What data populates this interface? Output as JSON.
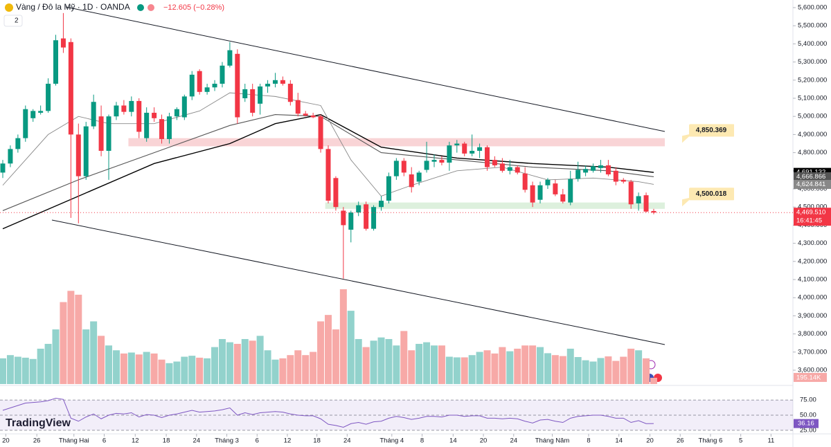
{
  "chart_data": {
    "type": "candlestick",
    "header": {
      "symbol": "Vàng / Đô la Mỹ · 1D · OANDA",
      "change": "−12.605 (−0.28%)",
      "badge": "2"
    },
    "logo": "TradingView",
    "up_color": "#089981",
    "down_color": "#f23645",
    "candles": {
      "open": [
        4690,
        4740,
        4820,
        4880,
        4990,
        5020,
        5030,
        5180,
        5430,
        5410,
        4900,
        4670,
        4945,
        5000,
        4810,
        5000,
        5060,
        5025,
        5085,
        4880,
        5020,
        4985,
        4875,
        5000,
        4995,
        5110,
        5250,
        5135,
        5160,
        5180,
        5280,
        5345,
        5100,
        5150,
        5070,
        5165,
        5180,
        5200,
        5180,
        5090,
        5015,
        5005,
        5000,
        4820,
        4660,
        4480,
        4375,
        4470,
        4515,
        4380,
        4500,
        4535,
        4670,
        4755,
        4680,
        4640,
        4705,
        4750,
        4760,
        4745,
        4840,
        4850,
        4795,
        4810,
        4830,
        4760,
        4740,
        4700,
        4720,
        4685,
        4620,
        4540,
        4620,
        4630,
        4570,
        4525,
        4655,
        4690,
        4700,
        4715,
        4730,
        4700,
        4650,
        4640,
        4520,
        4565,
        4478
      ],
      "high": [
        4760,
        4840,
        4900,
        5060,
        5040,
        5060,
        5210,
        5450,
        5570,
        5430,
        4960,
        4970,
        5120,
        5060,
        5010,
        5080,
        5090,
        5110,
        5100,
        5050,
        5050,
        5010,
        5020,
        5050,
        5120,
        5250,
        5260,
        5180,
        5200,
        5300,
        5410,
        5370,
        5180,
        5180,
        5180,
        5200,
        5240,
        5220,
        5200,
        5130,
        5030,
        5020,
        5010,
        4840,
        4670,
        4500,
        4480,
        4530,
        4530,
        4510,
        4560,
        4690,
        4770,
        4770,
        4720,
        4700,
        4860,
        4790,
        4780,
        4860,
        4870,
        4860,
        4900,
        4850,
        4840,
        4780,
        4770,
        4760,
        4730,
        4720,
        4640,
        4640,
        4660,
        4650,
        4600,
        4700,
        4750,
        4730,
        4740,
        4760,
        4760,
        4720,
        4660,
        4650,
        4580,
        4580,
        4490
      ],
      "low": [
        4660,
        4720,
        4800,
        4860,
        4970,
        5010,
        5020,
        5170,
        5350,
        4440,
        4410,
        4650,
        4930,
        4780,
        4650,
        4980,
        5010,
        5000,
        4880,
        4860,
        4970,
        4850,
        4850,
        4980,
        4980,
        5090,
        5120,
        5120,
        5140,
        5160,
        5270,
        4960,
        5080,
        5000,
        5010,
        5130,
        5160,
        5170,
        5060,
        5000,
        5000,
        4990,
        4800,
        4520,
        4480,
        4105,
        4305,
        4450,
        4370,
        4370,
        4480,
        4520,
        4650,
        4670,
        4580,
        4620,
        4690,
        4720,
        4730,
        4700,
        4800,
        4780,
        4780,
        4770,
        4700,
        4720,
        4690,
        4680,
        4680,
        4580,
        4500,
        4520,
        4600,
        4560,
        4520,
        4510,
        4640,
        4670,
        4690,
        4690,
        4670,
        4620,
        4630,
        4490,
        4480,
        4470,
        4460
      ],
      "close": [
        4740,
        4820,
        4880,
        5040,
        5030,
        5030,
        5180,
        5420,
        5380,
        4900,
        4670,
        4945,
        5080,
        4810,
        5000,
        5060,
        5025,
        5085,
        4915,
        5020,
        4990,
        4875,
        5000,
        5040,
        5110,
        5230,
        5135,
        5160,
        5180,
        5280,
        5365,
        4995,
        5150,
        5020,
        5165,
        5180,
        5200,
        5180,
        5080,
        5015,
        5005,
        4995,
        4820,
        4535,
        4500,
        4400,
        4470,
        4510,
        4380,
        4500,
        4535,
        4670,
        4755,
        4690,
        4610,
        4690,
        4755,
        4760,
        4745,
        4840,
        4850,
        4795,
        4810,
        4830,
        4720,
        4730,
        4700,
        4720,
        4690,
        4595,
        4525,
        4620,
        4650,
        4570,
        4530,
        4655,
        4705,
        4710,
        4725,
        4730,
        4680,
        4640,
        4640,
        4515,
        4560,
        4475,
        4469.51
      ]
    },
    "volume": {
      "values": [
        800,
        900,
        850,
        820,
        780,
        1100,
        1250,
        1700,
        2550,
        2900,
        2780,
        1700,
        1950,
        1500,
        1200,
        1050,
        950,
        980,
        920,
        1000,
        950,
        760,
        650,
        700,
        850,
        880,
        820,
        800,
        1150,
        1400,
        1300,
        1250,
        1400,
        1350,
        1500,
        1050,
        760,
        800,
        900,
        1050,
        900,
        1000,
        1950,
        2150,
        1700,
        2950,
        2280,
        1400,
        1150,
        1350,
        1450,
        1400,
        1200,
        1650,
        1050,
        1250,
        1300,
        1200,
        1200,
        850,
        830,
        830,
        900,
        1000,
        1050,
        950,
        1150,
        1020,
        1100,
        1200,
        1200,
        1150,
        960,
        900,
        870,
        1100,
        840,
        740,
        700,
        810,
        860,
        720,
        850,
        1100,
        1050,
        800,
        195.14
      ],
      "up_color": "#92d2cc",
      "down_color": "#f7a9a7",
      "last_label": "195.14K"
    },
    "moving_averages": [
      {
        "color": "#000000",
        "width": 1.4,
        "indices": [
          0,
          10,
          20,
          30,
          36,
          42,
          50,
          60,
          70,
          80,
          86
        ],
        "values": [
          4380,
          4560,
          4740,
          4850,
          4960,
          5010,
          4830,
          4770,
          4740,
          4720,
          4691.132
        ],
        "last_label": "4,691.132"
      },
      {
        "color": "#555555",
        "width": 1.1,
        "indices": [
          0,
          10,
          20,
          30,
          36,
          42,
          50,
          60,
          70,
          80,
          86
        ],
        "values": [
          4480,
          4650,
          4800,
          4950,
          5010,
          5000,
          4800,
          4760,
          4720,
          4700,
          4666.866
        ],
        "last_label": "4,666.866"
      },
      {
        "color": "#888888",
        "width": 0.9,
        "indices": [
          0,
          6,
          10,
          14,
          20,
          26,
          30,
          36,
          42,
          46,
          50,
          54,
          60,
          66,
          72,
          78,
          84,
          86
        ],
        "values": [
          4620,
          4900,
          5000,
          4960,
          4960,
          5030,
          5130,
          5110,
          5060,
          4760,
          4560,
          4620,
          4700,
          4720,
          4650,
          4660,
          4640,
          4624.841
        ],
        "last_label": "4,624.841"
      }
    ],
    "last_price": {
      "value": 4469.51,
      "label": "4,469.510",
      "time": "16:41:45"
    },
    "zones": [
      {
        "value": 4850.369,
        "label": "4,850.369",
        "low": 4835,
        "high": 4880,
        "start_index": 16.6,
        "color": "#f8c9cc"
      },
      {
        "value": 4500.018,
        "label": "4,500.018",
        "low": 4490,
        "high": 4525,
        "start_index": 42.6,
        "color": "#d4ecd4"
      }
    ],
    "ylim": [
      3600,
      5600
    ],
    "yticks": [
      {
        "value": 3600,
        "label": "3,600.000"
      },
      {
        "value": 3700,
        "label": "3,700.000"
      },
      {
        "value": 3800,
        "label": "3,800.000"
      },
      {
        "value": 3900,
        "label": "3,900.000"
      },
      {
        "value": 4000,
        "label": "4,000.000"
      },
      {
        "value": 4100,
        "label": "4,100.000"
      },
      {
        "value": 4200,
        "label": "4,200.000"
      },
      {
        "value": 4300,
        "label": "4,300.000"
      },
      {
        "value": 4400,
        "label": "4,400.000"
      },
      {
        "value": 4500,
        "label": "4,500.000"
      },
      {
        "value": 4600,
        "label": "4,600.000"
      },
      {
        "value": 4700,
        "label": "4,700.000"
      },
      {
        "value": 4800,
        "label": "4,800.000"
      },
      {
        "value": 4900,
        "label": "4,900.000"
      },
      {
        "value": 5000,
        "label": "5,000.000"
      },
      {
        "value": 5100,
        "label": "5,100.000"
      },
      {
        "value": 5200,
        "label": "5,200.000"
      },
      {
        "value": 5300,
        "label": "5,300.000"
      },
      {
        "value": 5400,
        "label": "5,400.000"
      },
      {
        "value": 5500,
        "label": "5,500.000"
      },
      {
        "value": 5600,
        "label": "5,600.000"
      }
    ],
    "xticks": [
      {
        "value": 0.4,
        "label": "20"
      },
      {
        "value": 4.5,
        "label": "26"
      },
      {
        "value": 9.4,
        "label": "Tháng Hai"
      },
      {
        "value": 13.4,
        "label": "6"
      },
      {
        "value": 17.5,
        "label": "12"
      },
      {
        "value": 21.6,
        "label": "18"
      },
      {
        "value": 25.6,
        "label": "24"
      },
      {
        "value": 29.6,
        "label": "Tháng 3"
      },
      {
        "value": 33.6,
        "label": "6"
      },
      {
        "value": 37.6,
        "label": "12"
      },
      {
        "value": 41.5,
        "label": "18"
      },
      {
        "value": 45.5,
        "label": "24"
      },
      {
        "value": 51.4,
        "label": "Tháng 4"
      },
      {
        "value": 55.4,
        "label": "8"
      },
      {
        "value": 59.5,
        "label": "14"
      },
      {
        "value": 63.5,
        "label": "20"
      },
      {
        "value": 67.5,
        "label": "24"
      },
      {
        "value": 72.6,
        "label": "Tháng Năm"
      },
      {
        "value": 77.4,
        "label": "8"
      },
      {
        "value": 81.4,
        "label": "14"
      },
      {
        "value": 85.5,
        "label": "20"
      },
      {
        "value": 89.5,
        "label": "26"
      },
      {
        "value": 93.5,
        "label": "Tháng 6"
      },
      {
        "value": 97.5,
        "label": "5"
      },
      {
        "value": 101.5,
        "label": "11"
      }
    ],
    "rsi": {
      "color": "#7e57c2",
      "ylim": [
        18,
        82
      ],
      "values": [
        58,
        62,
        66,
        70,
        71,
        72,
        74,
        78,
        76,
        45,
        40,
        47,
        52,
        44,
        50,
        53,
        52,
        54,
        47,
        51,
        50,
        46,
        50,
        52,
        55,
        58,
        55,
        56,
        57,
        59,
        62,
        50,
        54,
        51,
        54,
        55,
        56,
        55,
        52,
        50,
        49,
        49,
        44,
        35,
        33,
        30,
        36,
        38,
        35,
        39,
        40,
        45,
        48,
        46,
        43,
        45,
        48,
        48,
        47,
        50,
        50,
        48,
        49,
        49,
        45,
        45,
        44,
        45,
        44,
        40,
        37,
        42,
        43,
        40,
        38,
        45,
        48,
        49,
        50,
        50,
        48,
        45,
        45,
        38,
        41,
        36,
        36.16
      ],
      "levels": [
        {
          "value": 75,
          "label": "75.00"
        },
        {
          "value": 50,
          "label": "50.00"
        },
        {
          "value": 25,
          "label": "25.00"
        }
      ]
    }
  }
}
